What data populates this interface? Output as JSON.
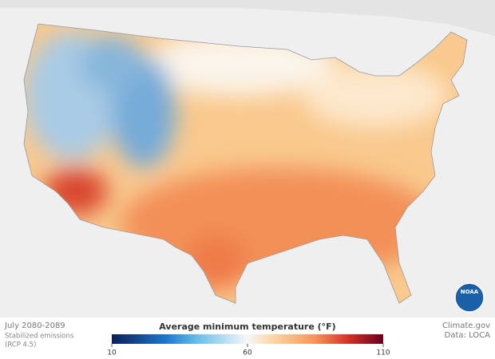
{
  "period": "July 2080-2089",
  "scenario": [
    "Stabilized emissions",
    "(RCP 4.5)"
  ],
  "credit": "Climate.gov",
  "source": "Data: LOCA",
  "logo": "NOAA",
  "colorbar": {
    "title": "Average minimum temperature (°F)",
    "lim": [
      10,
      110
    ],
    "ticks": [
      10,
      60,
      110
    ]
  }
}
